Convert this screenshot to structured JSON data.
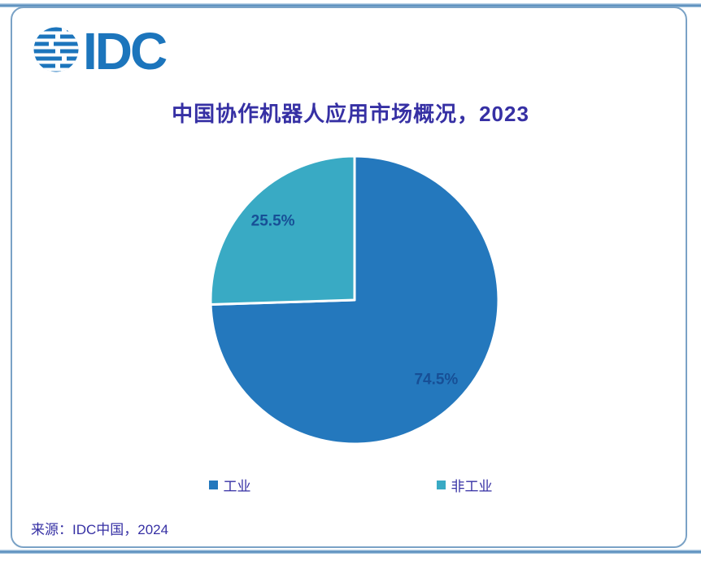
{
  "logo": {
    "text": "IDC"
  },
  "title": "中国协作机器人应用市场概况，2023",
  "source": "来源：IDC中国，2024",
  "colors": {
    "logo_blue": "#1C75BC",
    "title_text": "#3630A4",
    "percent_label_text": "#174F96",
    "card_border": "#7aa2c6",
    "accent_line": "#4e86b8",
    "industrial_blue": "#2478BD",
    "non_industrial_teal": "#39AAC4"
  },
  "chart_data": {
    "type": "pie",
    "title": "中国协作机器人应用市场概况，2023",
    "slices": [
      {
        "name": "工业",
        "value": 74.5,
        "label": "74.5%",
        "color": "#2478BD"
      },
      {
        "name": "非工业",
        "value": 25.5,
        "label": "25.5%",
        "color": "#39AAC4"
      }
    ],
    "start_angle_deg": 0,
    "direction": "clockwise",
    "slice_gap_stroke": "#ffffff",
    "label_color": "#174F96",
    "legend_position": "bottom",
    "source": "来源：IDC中国，2024"
  }
}
